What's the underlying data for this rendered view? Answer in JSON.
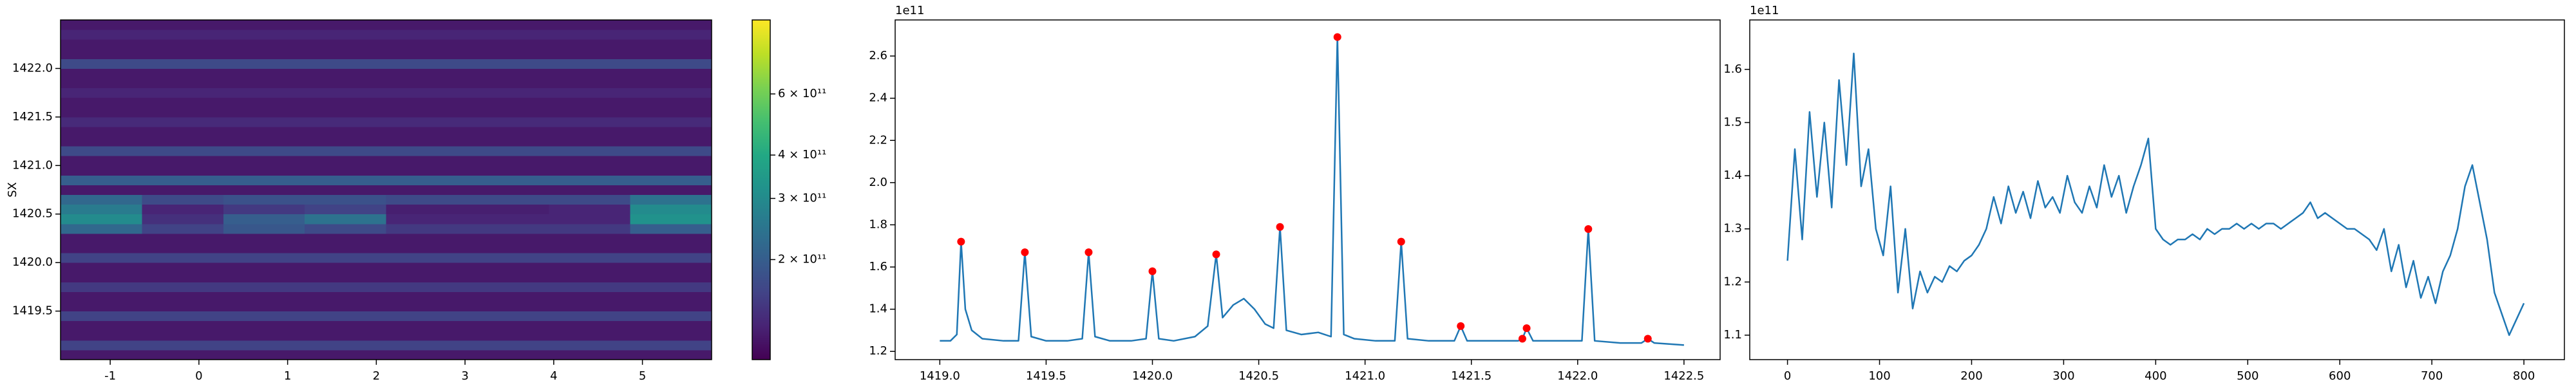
{
  "chart_data": [
    {
      "type": "heatmap",
      "ylabel": "SX",
      "xlim": [
        -1.56,
        5.78
      ],
      "xticks": [
        -1,
        0,
        1,
        2,
        3,
        4,
        5
      ],
      "ylim": [
        1419.0,
        1422.5
      ],
      "yticks": [
        1419.5,
        {
          "value": 1420,
          "label": "1420.0"
        },
        1420.5,
        {
          "value": 1421,
          "label": "1421.0"
        },
        1421.5,
        {
          "value": 1422,
          "label": "1422.0"
        }
      ],
      "colormap": "viridis",
      "colorbar": {
        "scale": "log",
        "lim": [
          103000000000.0,
          980000000000.0
        ],
        "ticks": [
          {
            "value": 200000000000.0,
            "label": "2 × 10¹¹"
          },
          {
            "value": 300000000000.0,
            "label": "3 × 10¹¹"
          },
          {
            "value": 400000000000.0,
            "label": "4 × 10¹¹"
          },
          {
            "value": 600000000000.0,
            "label": "6 × 10¹¹"
          }
        ]
      },
      "z": [
        [
          120000000000.0,
          120000000000.0,
          120000000000.0,
          120000000000.0,
          120000000000.0,
          120000000000.0,
          120000000000.0,
          120000000000.0
        ],
        [
          160000000000.0,
          160000000000.0,
          160000000000.0,
          160000000000.0,
          160000000000.0,
          160000000000.0,
          160000000000.0,
          160000000000.0
        ],
        [
          120000000000.0,
          120000000000.0,
          120000000000.0,
          120000000000.0,
          120000000000.0,
          120000000000.0,
          120000000000.0,
          120000000000.0
        ],
        [
          120000000000.0,
          120000000000.0,
          120000000000.0,
          120000000000.0,
          120000000000.0,
          120000000000.0,
          120000000000.0,
          120000000000.0
        ],
        [
          160000000000.0,
          160000000000.0,
          160000000000.0,
          160000000000.0,
          160000000000.0,
          160000000000.0,
          160000000000.0,
          160000000000.0
        ],
        [
          120000000000.0,
          120000000000.0,
          120000000000.0,
          120000000000.0,
          120000000000.0,
          120000000000.0,
          120000000000.0,
          120000000000.0
        ],
        [
          120000000000.0,
          120000000000.0,
          120000000000.0,
          120000000000.0,
          120000000000.0,
          120000000000.0,
          120000000000.0,
          120000000000.0
        ],
        [
          150000000000.0,
          150000000000.0,
          150000000000.0,
          150000000000.0,
          150000000000.0,
          150000000000.0,
          150000000000.0,
          150000000000.0
        ],
        [
          120000000000.0,
          120000000000.0,
          120000000000.0,
          120000000000.0,
          120000000000.0,
          120000000000.0,
          120000000000.0,
          120000000000.0
        ],
        [
          120000000000.0,
          120000000000.0,
          120000000000.0,
          120000000000.0,
          120000000000.0,
          120000000000.0,
          120000000000.0,
          120000000000.0
        ],
        [
          160000000000.0,
          160000000000.0,
          160000000000.0,
          160000000000.0,
          160000000000.0,
          160000000000.0,
          160000000000.0,
          160000000000.0
        ],
        [
          120000000000.0,
          120000000000.0,
          120000000000.0,
          120000000000.0,
          120000000000.0,
          120000000000.0,
          120000000000.0,
          120000000000.0
        ],
        [
          120000000000.0,
          120000000000.0,
          120000000000.0,
          120000000000.0,
          120000000000.0,
          120000000000.0,
          120000000000.0,
          120000000000.0
        ],
        [
          220000000000.0,
          160000000000.0,
          190000000000.0,
          170000000000.0,
          150000000000.0,
          150000000000.0,
          150000000000.0,
          200000000000.0
        ],
        [
          300000000000.0,
          140000000000.0,
          200000000000.0,
          240000000000.0,
          130000000000.0,
          130000000000.0,
          130000000000.0,
          320000000000.0
        ],
        [
          260000000000.0,
          130000000000.0,
          150000000000.0,
          160000000000.0,
          125000000000.0,
          125000000000.0,
          130000000000.0,
          300000000000.0
        ],
        [
          220000000000.0,
          170000000000.0,
          180000000000.0,
          180000000000.0,
          170000000000.0,
          170000000000.0,
          170000000000.0,
          240000000000.0
        ],
        [
          120000000000.0,
          120000000000.0,
          120000000000.0,
          120000000000.0,
          120000000000.0,
          120000000000.0,
          120000000000.0,
          120000000000.0
        ],
        [
          200000000000.0,
          200000000000.0,
          200000000000.0,
          200000000000.0,
          200000000000.0,
          200000000000.0,
          200000000000.0,
          200000000000.0
        ],
        [
          120000000000.0,
          120000000000.0,
          120000000000.0,
          120000000000.0,
          120000000000.0,
          120000000000.0,
          120000000000.0,
          120000000000.0
        ],
        [
          120000000000.0,
          120000000000.0,
          120000000000.0,
          120000000000.0,
          120000000000.0,
          120000000000.0,
          120000000000.0,
          120000000000.0
        ],
        [
          170000000000.0,
          170000000000.0,
          170000000000.0,
          170000000000.0,
          170000000000.0,
          170000000000.0,
          170000000000.0,
          170000000000.0
        ],
        [
          120000000000.0,
          120000000000.0,
          120000000000.0,
          120000000000.0,
          120000000000.0,
          120000000000.0,
          120000000000.0,
          120000000000.0
        ],
        [
          120000000000.0,
          120000000000.0,
          120000000000.0,
          120000000000.0,
          120000000000.0,
          120000000000.0,
          120000000000.0,
          120000000000.0
        ],
        [
          135000000000.0,
          135000000000.0,
          135000000000.0,
          135000000000.0,
          135000000000.0,
          135000000000.0,
          135000000000.0,
          135000000000.0
        ],
        [
          120000000000.0,
          120000000000.0,
          120000000000.0,
          120000000000.0,
          120000000000.0,
          120000000000.0,
          120000000000.0,
          120000000000.0
        ],
        [
          120000000000.0,
          120000000000.0,
          120000000000.0,
          120000000000.0,
          120000000000.0,
          120000000000.0,
          120000000000.0,
          120000000000.0
        ],
        [
          130000000000.0,
          130000000000.0,
          130000000000.0,
          130000000000.0,
          130000000000.0,
          130000000000.0,
          130000000000.0,
          130000000000.0
        ],
        [
          120000000000.0,
          120000000000.0,
          120000000000.0,
          120000000000.0,
          120000000000.0,
          120000000000.0,
          120000000000.0,
          120000000000.0
        ],
        [
          120000000000.0,
          120000000000.0,
          120000000000.0,
          120000000000.0,
          120000000000.0,
          120000000000.0,
          120000000000.0,
          120000000000.0
        ],
        [
          170000000000.0,
          170000000000.0,
          170000000000.0,
          170000000000.0,
          170000000000.0,
          170000000000.0,
          170000000000.0,
          170000000000.0
        ],
        [
          120000000000.0,
          120000000000.0,
          120000000000.0,
          120000000000.0,
          120000000000.0,
          120000000000.0,
          120000000000.0,
          120000000000.0
        ],
        [
          120000000000.0,
          120000000000.0,
          120000000000.0,
          120000000000.0,
          120000000000.0,
          120000000000.0,
          120000000000.0,
          120000000000.0
        ],
        [
          130000000000.0,
          130000000000.0,
          130000000000.0,
          130000000000.0,
          130000000000.0,
          130000000000.0,
          130000000000.0,
          130000000000.0
        ],
        [
          120000000000.0,
          120000000000.0,
          120000000000.0,
          120000000000.0,
          120000000000.0,
          120000000000.0,
          120000000000.0,
          120000000000.0
        ]
      ]
    },
    {
      "type": "line",
      "y_offset_label": "1e11",
      "xlim": [
        1418.79,
        1422.67
      ],
      "xticks": [
        {
          "value": 1419,
          "label": "1419.0"
        },
        1419.5,
        {
          "value": 1420,
          "label": "1420.0"
        },
        1420.5,
        {
          "value": 1421,
          "label": "1421.0"
        },
        1421.5,
        {
          "value": 1422,
          "label": "1422.0"
        },
        1422.5
      ],
      "ylim": [
        1.161,
        2.771
      ],
      "yticks": [
        1.2,
        1.4,
        1.6,
        1.8,
        {
          "value": 2,
          "label": "2.0"
        },
        2.2,
        2.4,
        2.6
      ],
      "series": [
        {
          "kind": "line",
          "color": "#1f77b4",
          "x": [
            1419.0,
            1419.05,
            1419.08,
            1419.1,
            1419.12,
            1419.15,
            1419.2,
            1419.3,
            1419.37,
            1419.4,
            1419.43,
            1419.5,
            1419.6,
            1419.67,
            1419.7,
            1419.73,
            1419.8,
            1419.9,
            1419.97,
            1420.0,
            1420.03,
            1420.1,
            1420.2,
            1420.26,
            1420.3,
            1420.33,
            1420.38,
            1420.43,
            1420.48,
            1420.53,
            1420.57,
            1420.6,
            1420.63,
            1420.7,
            1420.78,
            1420.84,
            1420.87,
            1420.9,
            1420.95,
            1421.05,
            1421.14,
            1421.17,
            1421.2,
            1421.3,
            1421.42,
            1421.45,
            1421.48,
            1421.6,
            1421.72,
            1421.74,
            1421.76,
            1421.79,
            1421.9,
            1422.02,
            1422.05,
            1422.08,
            1422.2,
            1422.3,
            1422.33,
            1422.36,
            1422.5
          ],
          "values": [
            1.25,
            1.25,
            1.28,
            1.72,
            1.4,
            1.3,
            1.26,
            1.25,
            1.25,
            1.67,
            1.27,
            1.25,
            1.25,
            1.26,
            1.67,
            1.27,
            1.25,
            1.25,
            1.26,
            1.58,
            1.26,
            1.25,
            1.27,
            1.32,
            1.66,
            1.36,
            1.42,
            1.45,
            1.4,
            1.33,
            1.31,
            1.79,
            1.3,
            1.28,
            1.29,
            1.27,
            2.69,
            1.28,
            1.26,
            1.25,
            1.25,
            1.72,
            1.26,
            1.25,
            1.25,
            1.32,
            1.25,
            1.25,
            1.25,
            1.26,
            1.31,
            1.25,
            1.25,
            1.25,
            1.78,
            1.25,
            1.24,
            1.24,
            1.26,
            1.24,
            1.23
          ]
        },
        {
          "kind": "scatter",
          "color": "#ff0000",
          "x": [
            1419.1,
            1419.4,
            1419.7,
            1420.0,
            1420.3,
            1420.6,
            1420.87,
            1421.17,
            1421.45,
            1421.74,
            1421.76,
            1422.05,
            1422.33
          ],
          "values": [
            1.72,
            1.67,
            1.67,
            1.58,
            1.66,
            1.79,
            2.69,
            1.72,
            1.32,
            1.26,
            1.31,
            1.78,
            1.26
          ]
        }
      ]
    },
    {
      "type": "line",
      "y_offset_label": "1e11",
      "xlim": [
        -41,
        844
      ],
      "xticks": [
        0,
        100,
        200,
        300,
        400,
        500,
        600,
        700,
        800
      ],
      "ylim": [
        1.054,
        1.693
      ],
      "yticks": [
        1.1,
        1.2,
        1.3,
        1.4,
        1.5,
        1.6
      ],
      "series": [
        {
          "kind": "line",
          "color": "#1f77b4",
          "x": [
            0,
            8,
            16,
            24,
            32,
            40,
            48,
            56,
            64,
            72,
            80,
            88,
            96,
            104,
            112,
            120,
            128,
            136,
            144,
            152,
            160,
            168,
            176,
            184,
            192,
            200,
            208,
            216,
            224,
            232,
            240,
            248,
            256,
            264,
            272,
            280,
            288,
            296,
            304,
            312,
            320,
            328,
            336,
            344,
            352,
            360,
            368,
            376,
            384,
            392,
            400,
            408,
            416,
            424,
            432,
            440,
            448,
            456,
            464,
            472,
            480,
            488,
            496,
            504,
            512,
            520,
            528,
            536,
            544,
            552,
            560,
            568,
            576,
            584,
            592,
            600,
            608,
            616,
            624,
            632,
            640,
            648,
            656,
            664,
            672,
            680,
            688,
            696,
            704,
            712,
            720,
            728,
            736,
            744,
            752,
            760,
            768,
            776,
            784,
            792,
            800
          ],
          "values": [
            1.24,
            1.45,
            1.28,
            1.52,
            1.36,
            1.5,
            1.34,
            1.58,
            1.42,
            1.63,
            1.38,
            1.45,
            1.3,
            1.25,
            1.38,
            1.18,
            1.3,
            1.15,
            1.22,
            1.18,
            1.21,
            1.2,
            1.23,
            1.22,
            1.24,
            1.25,
            1.27,
            1.3,
            1.36,
            1.31,
            1.38,
            1.33,
            1.37,
            1.32,
            1.39,
            1.34,
            1.36,
            1.33,
            1.4,
            1.35,
            1.33,
            1.38,
            1.34,
            1.42,
            1.36,
            1.4,
            1.33,
            1.38,
            1.42,
            1.47,
            1.3,
            1.28,
            1.27,
            1.28,
            1.28,
            1.29,
            1.28,
            1.3,
            1.29,
            1.3,
            1.3,
            1.31,
            1.3,
            1.31,
            1.3,
            1.31,
            1.31,
            1.3,
            1.31,
            1.32,
            1.33,
            1.35,
            1.32,
            1.33,
            1.32,
            1.31,
            1.3,
            1.3,
            1.29,
            1.28,
            1.26,
            1.3,
            1.22,
            1.27,
            1.19,
            1.24,
            1.17,
            1.21,
            1.16,
            1.22,
            1.25,
            1.3,
            1.38,
            1.42,
            1.35,
            1.28,
            1.18,
            1.14,
            1.1,
            1.13,
            1.16
          ]
        }
      ]
    }
  ]
}
